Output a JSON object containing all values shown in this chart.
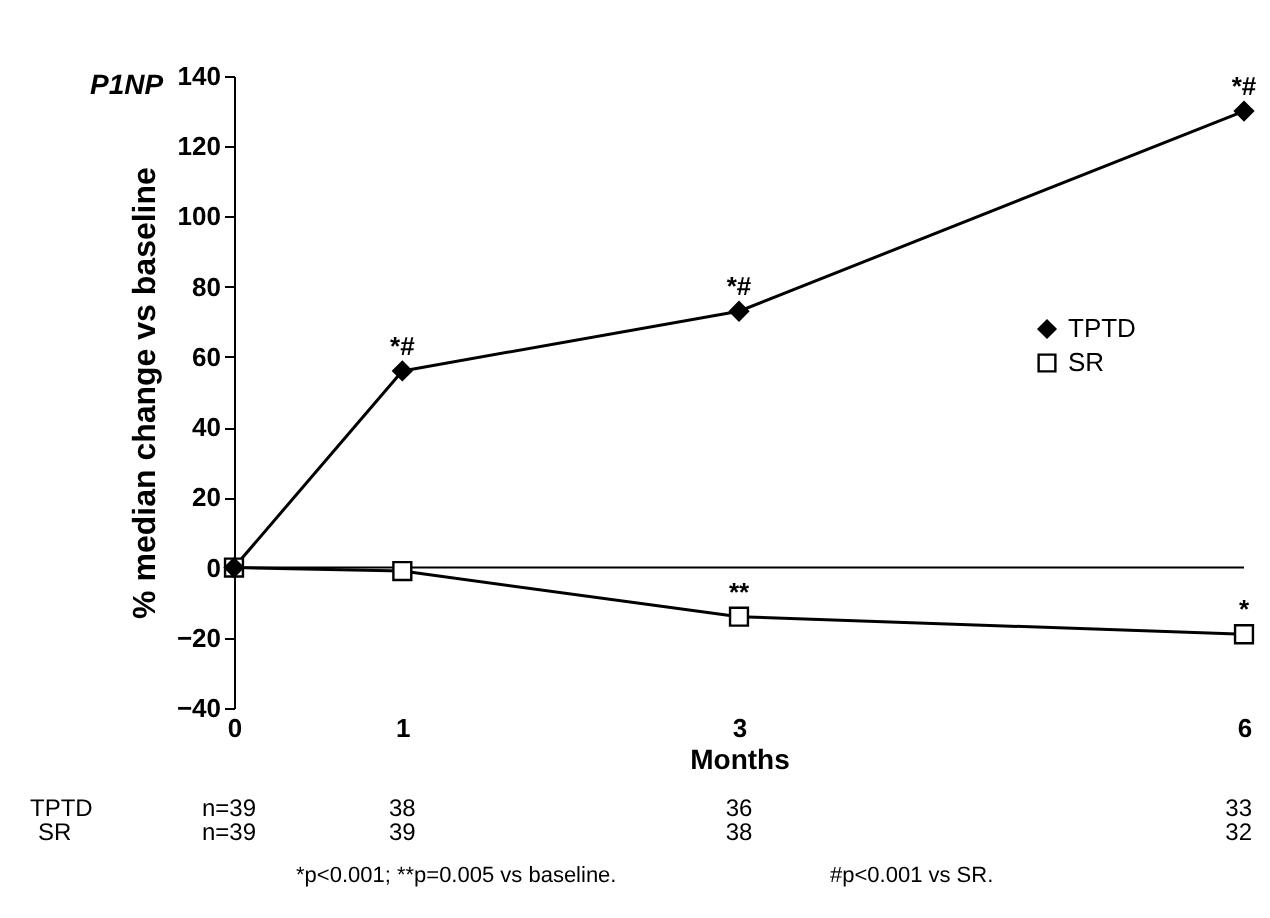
{
  "chart_data": {
    "type": "line",
    "title": "P1NP",
    "xlabel": "Months",
    "ylabel": "% median change vs baseline",
    "x": [
      0,
      1,
      3,
      6
    ],
    "series": [
      {
        "name": "TPTD",
        "color": "#000000",
        "marker": "diamond",
        "values": [
          0,
          56,
          73,
          130
        ]
      },
      {
        "name": "SR",
        "color": "#000000",
        "marker": "square",
        "values": [
          0,
          -1,
          -14,
          -19
        ]
      }
    ],
    "xlim": [
      0,
      6
    ],
    "xticks": [
      0,
      1,
      3,
      6
    ],
    "ylim": [
      -40,
      140
    ],
    "yticks": [
      -40,
      -20,
      0,
      20,
      40,
      60,
      80,
      100,
      120,
      140
    ],
    "ref_lines": [
      {
        "axis": "y",
        "value": 0
      }
    ],
    "grid": false,
    "legend": "right",
    "line_style": "solid",
    "annotations": [
      {
        "text": "*#",
        "x": 1,
        "y": 56
      },
      {
        "text": "*#",
        "x": 3,
        "y": 73
      },
      {
        "text": "*#",
        "x": 6,
        "y": 130
      },
      {
        "text": "**",
        "x": 3,
        "y": -14
      },
      {
        "text": "*",
        "x": 6,
        "y": -19
      },
      "TPTD",
      "n=39",
      "38",
      "36",
      "33",
      "SR",
      "n=39",
      "39",
      "38",
      "32",
      "*p<0.001; **p=0.005 vs baseline.",
      "#p<0.001 vs SR."
    ]
  }
}
